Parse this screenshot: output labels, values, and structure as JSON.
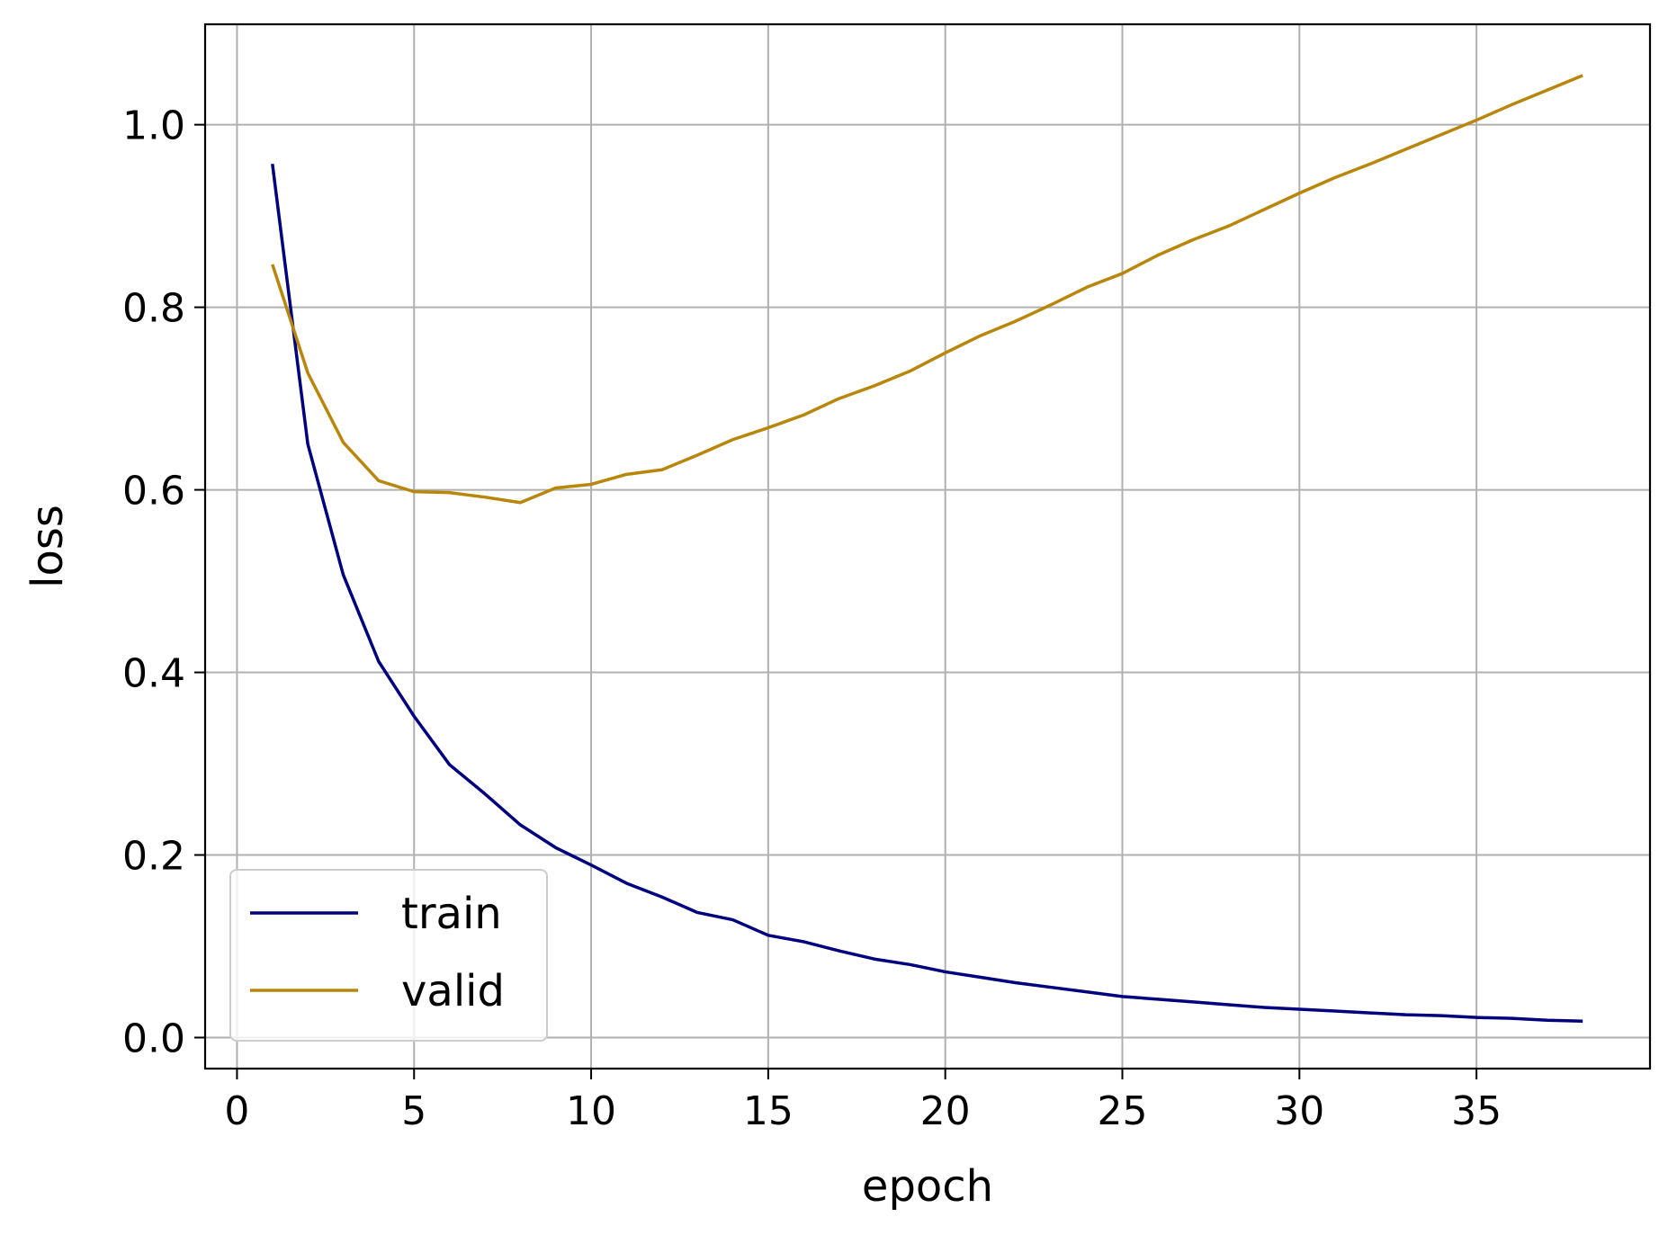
{
  "chart_data": {
    "type": "line",
    "title": "",
    "xlabel": "epoch",
    "ylabel": "loss",
    "xlim": [
      -0.9,
      39.9
    ],
    "ylim": [
      -0.034,
      1.11
    ],
    "grid": true,
    "x_ticks": [
      0,
      5,
      10,
      15,
      20,
      25,
      30,
      35
    ],
    "x_tick_labels": [
      "0",
      "5",
      "10",
      "15",
      "20",
      "25",
      "30",
      "35"
    ],
    "y_ticks": [
      0.0,
      0.2,
      0.4,
      0.6,
      0.8,
      1.0
    ],
    "y_tick_labels": [
      "0.0",
      "0.2",
      "0.4",
      "0.6",
      "0.8",
      "1.0"
    ],
    "legend_position": "lower-left",
    "x": [
      1,
      2,
      3,
      4,
      5,
      6,
      7,
      8,
      9,
      10,
      11,
      12,
      13,
      14,
      15,
      16,
      17,
      18,
      19,
      20,
      21,
      22,
      23,
      24,
      25,
      26,
      27,
      28,
      29,
      30,
      31,
      32,
      33,
      34,
      35,
      36,
      37,
      38
    ],
    "series": [
      {
        "name": "train",
        "color": "#00007f",
        "values": [
          0.957,
          0.65,
          0.507,
          0.412,
          0.352,
          0.299,
          0.267,
          0.233,
          0.208,
          0.189,
          0.169,
          0.154,
          0.137,
          0.129,
          0.112,
          0.105,
          0.095,
          0.086,
          0.08,
          0.072,
          0.066,
          0.06,
          0.055,
          0.05,
          0.045,
          0.042,
          0.039,
          0.036,
          0.033,
          0.031,
          0.029,
          0.027,
          0.025,
          0.024,
          0.022,
          0.021,
          0.019,
          0.018
        ]
      },
      {
        "name": "valid",
        "color": "#b8860b",
        "values": [
          0.847,
          0.728,
          0.652,
          0.61,
          0.598,
          0.597,
          0.592,
          0.586,
          0.602,
          0.606,
          0.617,
          0.622,
          0.638,
          0.655,
          0.668,
          0.682,
          0.7,
          0.714,
          0.73,
          0.75,
          0.769,
          0.785,
          0.803,
          0.822,
          0.837,
          0.857,
          0.874,
          0.889,
          0.907,
          0.925,
          0.942,
          0.957,
          0.973,
          0.989,
          1.005,
          1.022,
          1.038,
          1.054
        ]
      }
    ]
  }
}
